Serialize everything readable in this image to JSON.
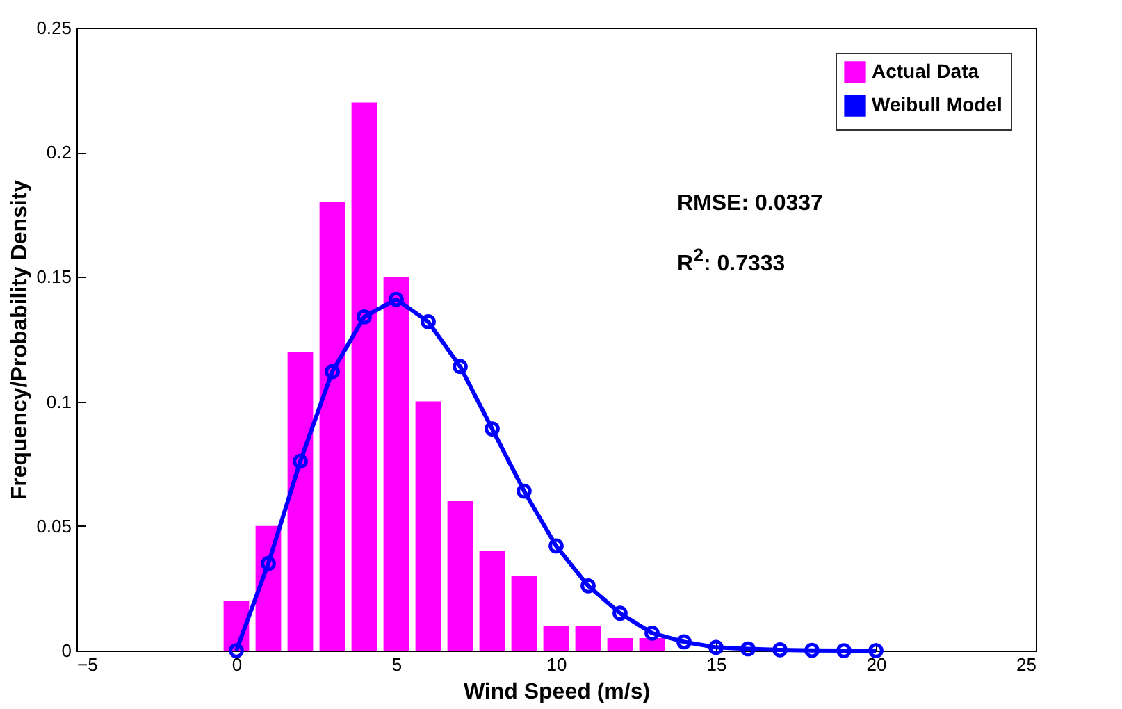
{
  "chart_data": {
    "type": "bar",
    "xlabel": "Wind Speed (m/s)",
    "ylabel": "Frequency/Probability Density",
    "xlim": [
      -5,
      25
    ],
    "xticks": [
      -5,
      0,
      5,
      10,
      15,
      20,
      25
    ],
    "ylim": [
      0,
      0.25
    ],
    "yticks": [
      0,
      0.05,
      0.1,
      0.15,
      0.2,
      0.25
    ],
    "grid": false,
    "legend": "top right",
    "marker": "circle",
    "line_style": "solid",
    "annotations": [
      "RMSE: 0.0337",
      "R$^{2}$: 0.7333"
    ],
    "series": [
      {
        "name": "Actual Data",
        "color": "#ff00ff",
        "x": [
          0,
          1,
          2,
          3,
          4,
          5,
          6,
          7,
          8,
          9,
          10,
          11,
          12,
          13
        ],
        "values": [
          0.02,
          0.05,
          0.12,
          0.18,
          0.22,
          0.15,
          0.1,
          0.06,
          0.04,
          0.03,
          0.01,
          0.01,
          0.005,
          0.005
        ]
      },
      {
        "name": "Weibull Model",
        "type": "line",
        "color": "#0000ff",
        "x": [
          0,
          1,
          2,
          3,
          4,
          5,
          6,
          7,
          8,
          9,
          10,
          11,
          12,
          13,
          14,
          15,
          16,
          17,
          18,
          19,
          20
        ],
        "values": [
          0,
          0.035,
          0.076,
          0.112,
          0.134,
          0.141,
          0.132,
          0.114,
          0.089,
          0.064,
          0.042,
          0.026,
          0.015,
          0.007,
          0.0035,
          0.0013,
          0.0007,
          0.0003,
          0.0001,
          0,
          0
        ]
      }
    ]
  }
}
